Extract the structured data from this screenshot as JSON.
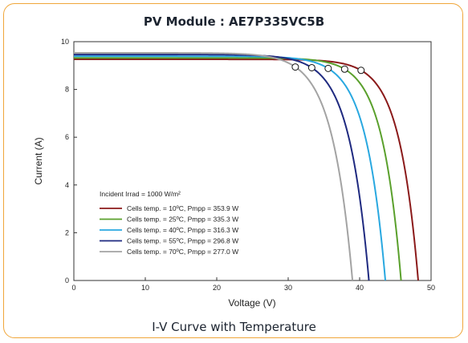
{
  "title": "PV Module : AE7P335VC5B",
  "caption": "I-V Curve with Temperature",
  "chart_data": {
    "type": "line",
    "xlabel": "Voltage (V)",
    "ylabel": "Current (A)",
    "xlim": [
      0,
      50
    ],
    "ylim": [
      0,
      10
    ],
    "xticks": [
      "0",
      "10",
      "20",
      "30",
      "40",
      "50"
    ],
    "yticks": [
      "0",
      "2",
      "4",
      "6",
      "8",
      "10"
    ],
    "grid": false,
    "legend_position": "bottom-left",
    "irradiance_label": "Incident Irrad = 1000 W/m²",
    "series": [
      {
        "name": "Cells temp. = 10ºC, Pmpp = 353.9 W",
        "color": "#8b1a1a",
        "isc": 9.26,
        "voc": 48.2,
        "vmp": 40.2,
        "imp": 8.8,
        "mpp": [
          40.2,
          8.8
        ]
      },
      {
        "name": "Cells temp. = 25ºC, Pmpp = 335.3 W",
        "color": "#5aa02c",
        "isc": 9.32,
        "voc": 45.8,
        "vmp": 37.9,
        "imp": 8.85,
        "mpp": [
          37.9,
          8.85
        ]
      },
      {
        "name": "Cells temp. = 40ºC, Pmpp = 316.3 W",
        "color": "#29a8e0",
        "isc": 9.39,
        "voc": 43.6,
        "vmp": 35.6,
        "imp": 8.88,
        "mpp": [
          35.6,
          8.88
        ]
      },
      {
        "name": "Cells temp. = 55ºC, Pmpp = 296.8 W",
        "color": "#1f2a80",
        "isc": 9.46,
        "voc": 41.3,
        "vmp": 33.3,
        "imp": 8.91,
        "mpp": [
          33.3,
          8.91
        ]
      },
      {
        "name": "Cells temp. = 70ºC, Pmpp = 277.0 W",
        "color": "#a3a3a3",
        "isc": 9.53,
        "voc": 39.0,
        "vmp": 31.0,
        "imp": 8.94,
        "mpp": [
          31.0,
          8.94
        ]
      }
    ]
  }
}
